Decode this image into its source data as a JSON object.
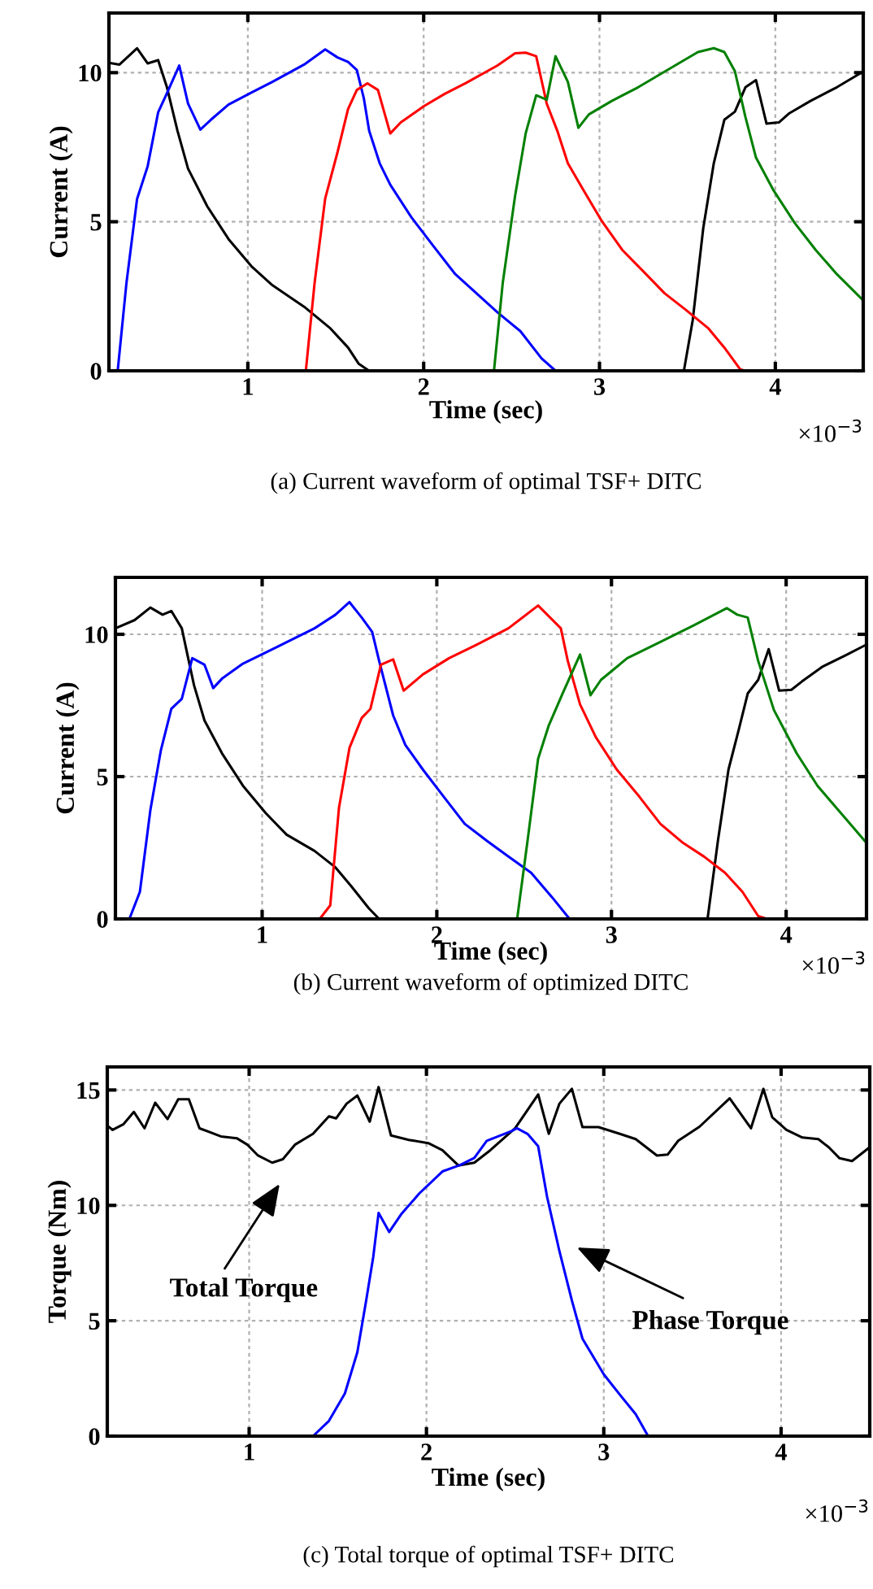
{
  "chart_data": [
    {
      "type": "line",
      "title": "(a) Current waveform of optimal TSF+ DITC",
      "xlabel": "Time (sec)",
      "ylabel": "Current (A)",
      "xlim": [
        0.21,
        4.5
      ],
      "ylim": [
        0,
        12
      ],
      "xticks": [
        1,
        2,
        3,
        4
      ],
      "yticks": [
        0,
        5,
        10
      ],
      "grid": true,
      "annotations": [
        "×10$^{−3}$"
      ],
      "series": [
        {
          "color": "#000000",
          "x": [
            0.21,
            0.27,
            0.37,
            0.43,
            0.49,
            0.54,
            0.6,
            0.66,
            0.77,
            0.89,
            1.02,
            1.14,
            1.32,
            1.47,
            1.57,
            1.63,
            1.69,
            3.48,
            3.53,
            3.59,
            3.65,
            3.71,
            3.77,
            3.83,
            3.89,
            3.95,
            4.02,
            4.08,
            4.2,
            4.35,
            4.49
          ],
          "values": [
            10.33,
            10.27,
            10.82,
            10.31,
            10.42,
            9.51,
            8.05,
            6.78,
            5.51,
            4.42,
            3.51,
            2.87,
            2.15,
            1.42,
            0.78,
            0.24,
            0,
            0,
            1.69,
            4.78,
            6.96,
            8.42,
            8.69,
            9.51,
            9.75,
            8.29,
            8.33,
            8.64,
            9.05,
            9.51,
            10.0
          ]
        },
        {
          "color": "#0000ff",
          "x": [
            0.21,
            0.26,
            0.31,
            0.37,
            0.43,
            0.49,
            0.54,
            0.61,
            0.66,
            0.73,
            0.79,
            0.89,
            1.02,
            1.14,
            1.32,
            1.44,
            1.51,
            1.57,
            1.62,
            1.66,
            1.69,
            1.75,
            1.81,
            1.93,
            2.06,
            2.18,
            2.3,
            2.42,
            2.55,
            2.67,
            2.75,
            4.49
          ],
          "values": [
            0,
            0,
            2.96,
            5.76,
            6.85,
            8.67,
            9.31,
            10.24,
            8.96,
            8.09,
            8.42,
            8.93,
            9.33,
            9.69,
            10.27,
            10.78,
            10.51,
            10.36,
            10.09,
            9.13,
            8.05,
            6.96,
            6.24,
            5.15,
            4.15,
            3.24,
            2.6,
            1.96,
            1.33,
            0.42,
            0,
            0
          ]
        },
        {
          "color": "#ff0000",
          "x": [
            0.21,
            1.33,
            1.38,
            1.44,
            1.51,
            1.57,
            1.62,
            1.68,
            1.74,
            1.81,
            1.87,
            2.0,
            2.12,
            2.24,
            2.42,
            2.52,
            2.58,
            2.64,
            2.7,
            2.76,
            2.82,
            2.91,
            3.01,
            3.13,
            3.25,
            3.37,
            3.49,
            3.62,
            3.71,
            3.8,
            3.83,
            4.49
          ],
          "values": [
            0,
            0,
            2.96,
            5.78,
            7.33,
            8.78,
            9.42,
            9.64,
            9.42,
            7.96,
            8.33,
            8.87,
            9.29,
            9.65,
            10.24,
            10.65,
            10.67,
            10.55,
            8.96,
            8.05,
            6.96,
            6.05,
            5.05,
            4.05,
            3.33,
            2.6,
            2.05,
            1.42,
            0.78,
            0.05,
            0,
            0
          ]
        },
        {
          "color": "#008000",
          "x": [
            0.21,
            2.4,
            2.45,
            2.52,
            2.58,
            2.64,
            2.7,
            2.75,
            2.82,
            2.88,
            2.94,
            3.07,
            3.22,
            3.43,
            3.56,
            3.65,
            3.71,
            3.77,
            3.83,
            3.89,
            3.99,
            4.11,
            4.23,
            4.35,
            4.49
          ],
          "values": [
            0,
            0,
            2.96,
            5.87,
            7.96,
            9.24,
            9.09,
            10.55,
            9.69,
            8.15,
            8.6,
            9.05,
            9.51,
            10.24,
            10.69,
            10.82,
            10.69,
            10.05,
            8.51,
            7.15,
            6.05,
            4.96,
            4.05,
            3.24,
            2.42
          ]
        }
      ]
    },
    {
      "type": "line",
      "title": "(b) Current waveform of optimized DITC",
      "xlabel": "Time (sec)",
      "ylabel": "Current (A)",
      "xlim": [
        0.16,
        4.46
      ],
      "ylim": [
        0,
        12
      ],
      "xticks": [
        1,
        2,
        3,
        4
      ],
      "yticks": [
        0,
        5,
        10
      ],
      "grid": true,
      "annotations": [
        "×10$^{−3}$"
      ],
      "series": [
        {
          "color": "#000000",
          "x": [
            0.16,
            0.27,
            0.36,
            0.43,
            0.48,
            0.54,
            0.58,
            0.61,
            0.67,
            0.77,
            0.89,
            1.02,
            1.14,
            1.3,
            1.42,
            1.51,
            1.61,
            1.67,
            3.55,
            3.61,
            3.67,
            3.73,
            3.78,
            3.84,
            3.9,
            3.96,
            4.03,
            4.09,
            4.21,
            4.34,
            4.46
          ],
          "values": [
            10.21,
            10.5,
            10.94,
            10.69,
            10.82,
            10.21,
            9.06,
            8.21,
            6.97,
            5.82,
            4.68,
            3.72,
            2.96,
            2.39,
            1.81,
            1.15,
            0.38,
            0,
            0,
            2.77,
            5.25,
            6.68,
            7.92,
            8.4,
            9.48,
            8.02,
            8.05,
            8.34,
            8.87,
            9.26,
            9.64
          ]
        },
        {
          "color": "#0000ff",
          "x": [
            0.16,
            0.24,
            0.3,
            0.36,
            0.42,
            0.48,
            0.54,
            0.6,
            0.67,
            0.72,
            0.77,
            0.89,
            1.08,
            1.3,
            1.42,
            1.5,
            1.57,
            1.63,
            1.67,
            1.75,
            1.82,
            1.92,
            2.04,
            2.16,
            2.29,
            2.41,
            2.54,
            2.66,
            2.76,
            4.46
          ],
          "values": [
            0,
            0,
            0.95,
            3.82,
            5.92,
            7.38,
            7.73,
            9.16,
            8.93,
            8.11,
            8.44,
            8.97,
            9.54,
            10.21,
            10.69,
            11.13,
            10.59,
            10.08,
            9.06,
            7.15,
            6.11,
            5.25,
            4.29,
            3.34,
            2.73,
            2.19,
            1.62,
            0.76,
            0,
            0
          ]
        },
        {
          "color": "#ff0000",
          "x": [
            0.16,
            1.33,
            1.39,
            1.44,
            1.5,
            1.57,
            1.62,
            1.68,
            1.75,
            1.81,
            1.92,
            2.07,
            2.23,
            2.41,
            2.58,
            2.71,
            2.75,
            2.82,
            2.91,
            3.03,
            3.16,
            3.28,
            3.41,
            3.53,
            3.65,
            3.75,
            3.84,
            3.89,
            4.46
          ],
          "values": [
            0,
            0,
            0.48,
            3.91,
            6.01,
            7.06,
            7.38,
            8.93,
            9.12,
            8.02,
            8.59,
            9.16,
            9.64,
            10.21,
            11.01,
            10.21,
            9.06,
            7.54,
            6.39,
            5.25,
            4.29,
            3.34,
            2.67,
            2.19,
            1.62,
            0.95,
            0.1,
            0,
            0
          ]
        },
        {
          "color": "#008000",
          "x": [
            0.16,
            2.46,
            2.52,
            2.58,
            2.64,
            2.72,
            2.82,
            2.88,
            2.94,
            3.09,
            3.28,
            3.47,
            3.66,
            3.72,
            3.78,
            3.84,
            3.93,
            4.06,
            4.18,
            4.34,
            4.46
          ],
          "values": [
            0,
            0,
            2.77,
            5.63,
            6.78,
            7.92,
            9.29,
            7.86,
            8.4,
            9.16,
            9.73,
            10.31,
            10.92,
            10.69,
            10.59,
            9.06,
            7.34,
            5.82,
            4.67,
            3.53,
            2.67
          ]
        }
      ]
    },
    {
      "type": "line",
      "title": "(c) Total torque of optimal TSF+ DITC",
      "xlabel": "Time (sec)",
      "ylabel": "Torque (Nm)",
      "xlim": [
        0.2,
        4.5
      ],
      "ylim": [
        0,
        16
      ],
      "xticks": [
        1,
        2,
        3,
        4
      ],
      "yticks": [
        0,
        5,
        10,
        15
      ],
      "grid": true,
      "annotations": [
        "Total Torque",
        "Phase Torque",
        "×10$^{−3}$"
      ],
      "series": [
        {
          "color": "#000000",
          "x": [
            0.2,
            0.23,
            0.29,
            0.35,
            0.41,
            0.47,
            0.54,
            0.6,
            0.66,
            0.72,
            0.84,
            0.93,
            0.99,
            1.05,
            1.13,
            1.19,
            1.26,
            1.36,
            1.45,
            1.49,
            1.55,
            1.61,
            1.68,
            1.73,
            1.8,
            1.9,
            2.01,
            2.09,
            2.18,
            2.27,
            2.36,
            2.5,
            2.63,
            2.69,
            2.75,
            2.82,
            2.88,
            2.97,
            3.09,
            3.18,
            3.3,
            3.36,
            3.42,
            3.54,
            3.71,
            3.83,
            3.9,
            3.95,
            4.03,
            4.12,
            4.21,
            4.27,
            4.33,
            4.4,
            4.49
          ],
          "values": [
            13.46,
            13.27,
            13.51,
            14.05,
            13.34,
            14.45,
            13.74,
            14.6,
            14.6,
            13.34,
            12.99,
            12.91,
            12.63,
            12.16,
            11.85,
            12.0,
            12.64,
            13.1,
            13.86,
            13.77,
            14.41,
            14.76,
            13.63,
            15.13,
            13.03,
            12.84,
            12.7,
            12.39,
            11.73,
            11.85,
            12.39,
            13.34,
            14.81,
            13.1,
            14.41,
            15.05,
            13.39,
            13.39,
            13.1,
            12.87,
            12.16,
            12.2,
            12.8,
            13.41,
            14.64,
            13.34,
            15.05,
            13.82,
            13.27,
            12.94,
            12.87,
            12.51,
            12.04,
            11.92,
            12.46
          ]
        },
        {
          "color": "#0000ff",
          "x": [
            0.2,
            1.36,
            1.45,
            1.54,
            1.61,
            1.66,
            1.7,
            1.73,
            1.79,
            1.86,
            1.96,
            2.09,
            2.19,
            2.27,
            2.34,
            2.48,
            2.51,
            2.57,
            2.63,
            2.68,
            2.75,
            2.82,
            2.88,
            3.0,
            3.09,
            3.18,
            3.25,
            4.49
          ],
          "values": [
            0,
            0,
            0.66,
            1.85,
            3.63,
            5.88,
            7.77,
            9.67,
            8.85,
            9.64,
            10.52,
            11.47,
            11.75,
            12.06,
            12.8,
            13.22,
            13.34,
            13.1,
            12.56,
            10.38,
            8.01,
            5.88,
            4.22,
            2.68,
            1.8,
            0.95,
            0,
            0
          ]
        }
      ]
    }
  ]
}
